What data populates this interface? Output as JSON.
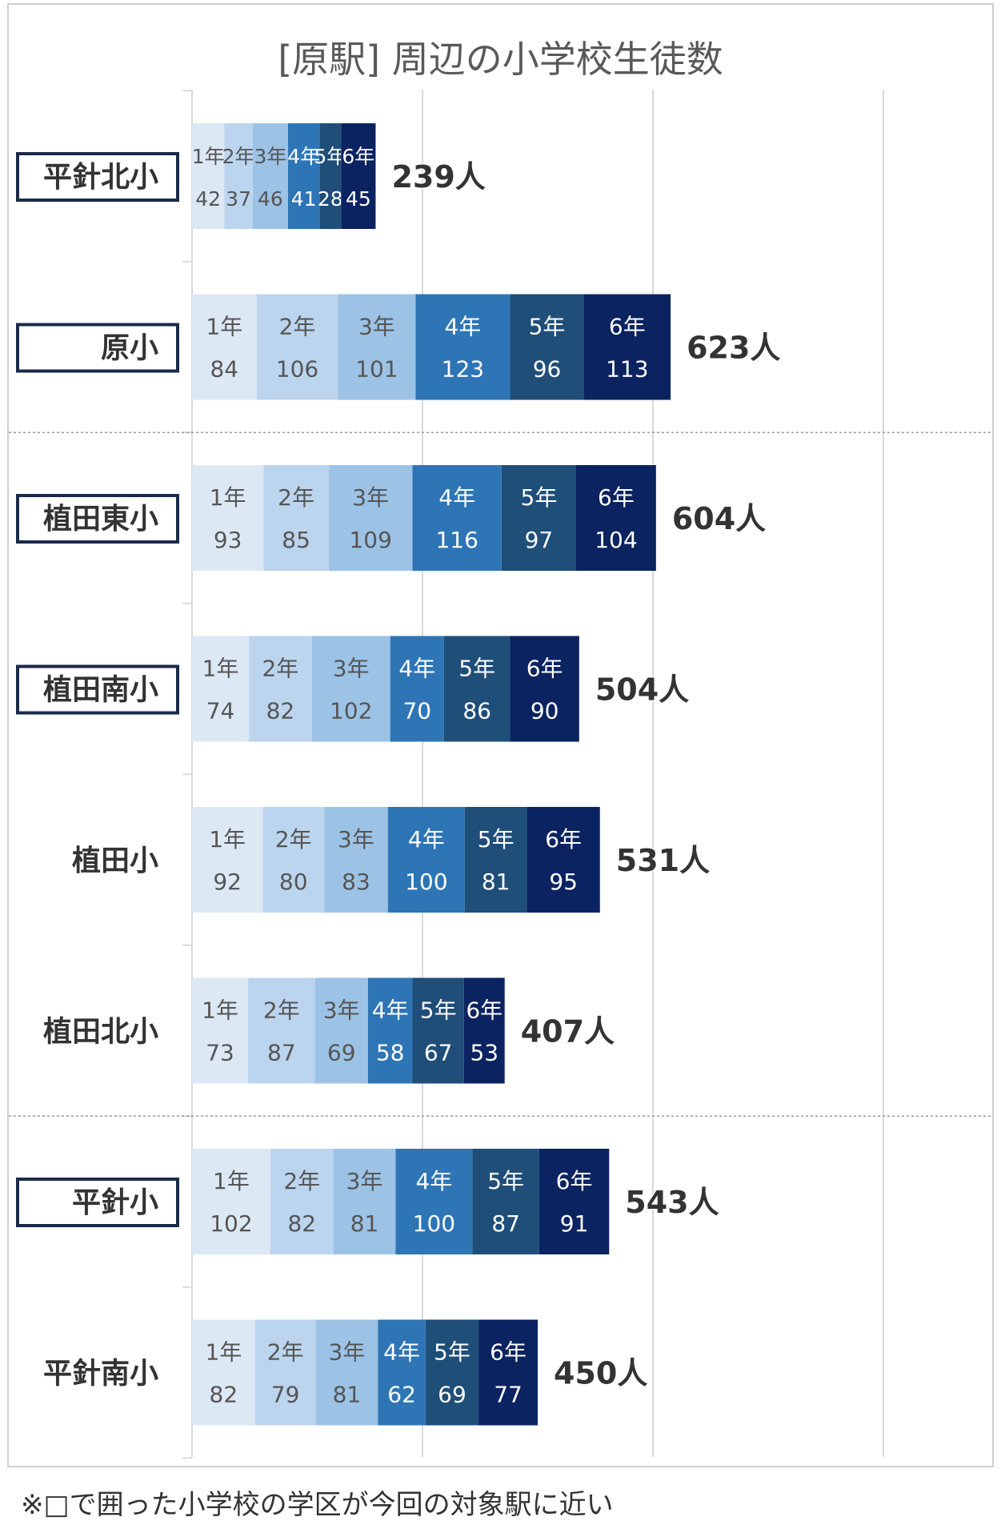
{
  "chart_data": {
    "type": "bar",
    "orientation": "horizontal",
    "stacked": true,
    "title": "[原駅] 周辺の小学校生徒数",
    "grades": [
      "1年",
      "2年",
      "3年",
      "4年",
      "5年",
      "6年"
    ],
    "grade_colors": [
      "#dde8f5",
      "#bcd5ee",
      "#9cc3e6",
      "#2e75b6",
      "#1f4e79",
      "#0b2360"
    ],
    "xlim": [
      0,
      900
    ],
    "grid": "vertical",
    "schools": [
      {
        "name": "平針北小",
        "boxed": true,
        "values": [
          42,
          37,
          46,
          41,
          28,
          45
        ],
        "total": "239人"
      },
      {
        "name": "原小",
        "boxed": true,
        "values": [
          84,
          106,
          101,
          123,
          96,
          113
        ],
        "total": "623人"
      },
      {
        "name": "植田東小",
        "boxed": true,
        "values": [
          93,
          85,
          109,
          116,
          97,
          104
        ],
        "total": "604人"
      },
      {
        "name": "植田南小",
        "boxed": true,
        "values": [
          74,
          82,
          102,
          70,
          86,
          90
        ],
        "total": "504人"
      },
      {
        "name": "植田小",
        "boxed": false,
        "values": [
          92,
          80,
          83,
          100,
          81,
          95
        ],
        "total": "531人"
      },
      {
        "name": "植田北小",
        "boxed": false,
        "values": [
          73,
          87,
          69,
          58,
          67,
          53
        ],
        "total": "407人"
      },
      {
        "name": "平針小",
        "boxed": true,
        "values": [
          102,
          82,
          81,
          100,
          87,
          91
        ],
        "total": "543人"
      },
      {
        "name": "平針南小",
        "boxed": false,
        "values": [
          82,
          79,
          81,
          62,
          69,
          77
        ],
        "total": "450人"
      }
    ],
    "group_dividers_after": [
      1,
      5
    ]
  },
  "footnote": "※□で囲った小学校の学区が今回の対象駅に近い"
}
